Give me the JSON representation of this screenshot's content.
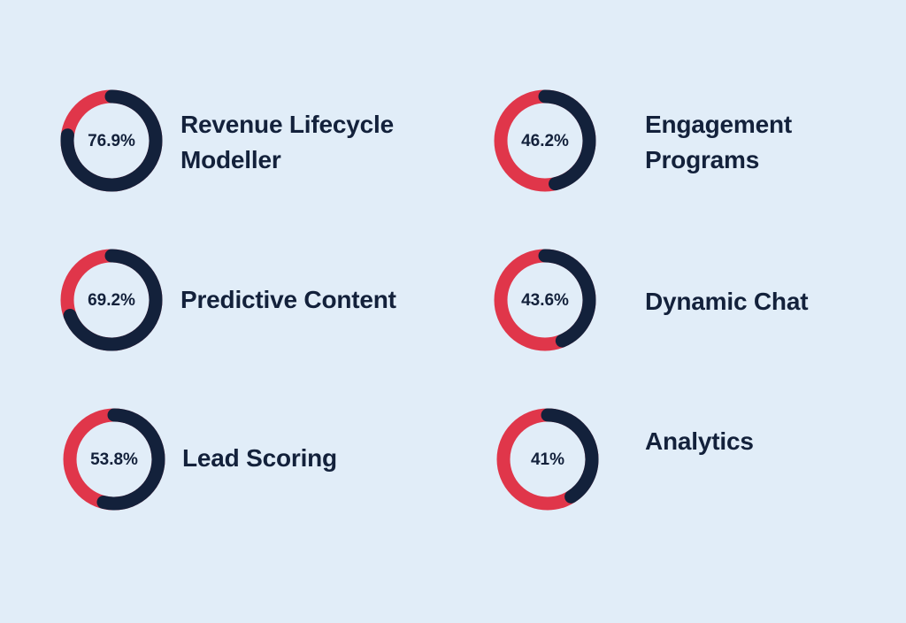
{
  "colors": {
    "background": "#e1edf8",
    "filled": "#13213b",
    "remaining": "#e0364a",
    "text": "#13213b"
  },
  "chart_data": {
    "type": "pie",
    "variant": "donut",
    "items": [
      {
        "label": "Revenue Lifecycle Modeller",
        "value": 76.9,
        "display": "76.9%"
      },
      {
        "label": "Engagement Programs",
        "value": 46.2,
        "display": "46.2%"
      },
      {
        "label": "Predictive Content",
        "value": 69.2,
        "display": "69.2%"
      },
      {
        "label": "Dynamic Chat",
        "value": 43.6,
        "display": "43.6%"
      },
      {
        "label": "Lead Scoring",
        "value": 53.8,
        "display": "53.8%"
      },
      {
        "label": "Analytics",
        "value": 41,
        "display": "41%"
      }
    ]
  }
}
